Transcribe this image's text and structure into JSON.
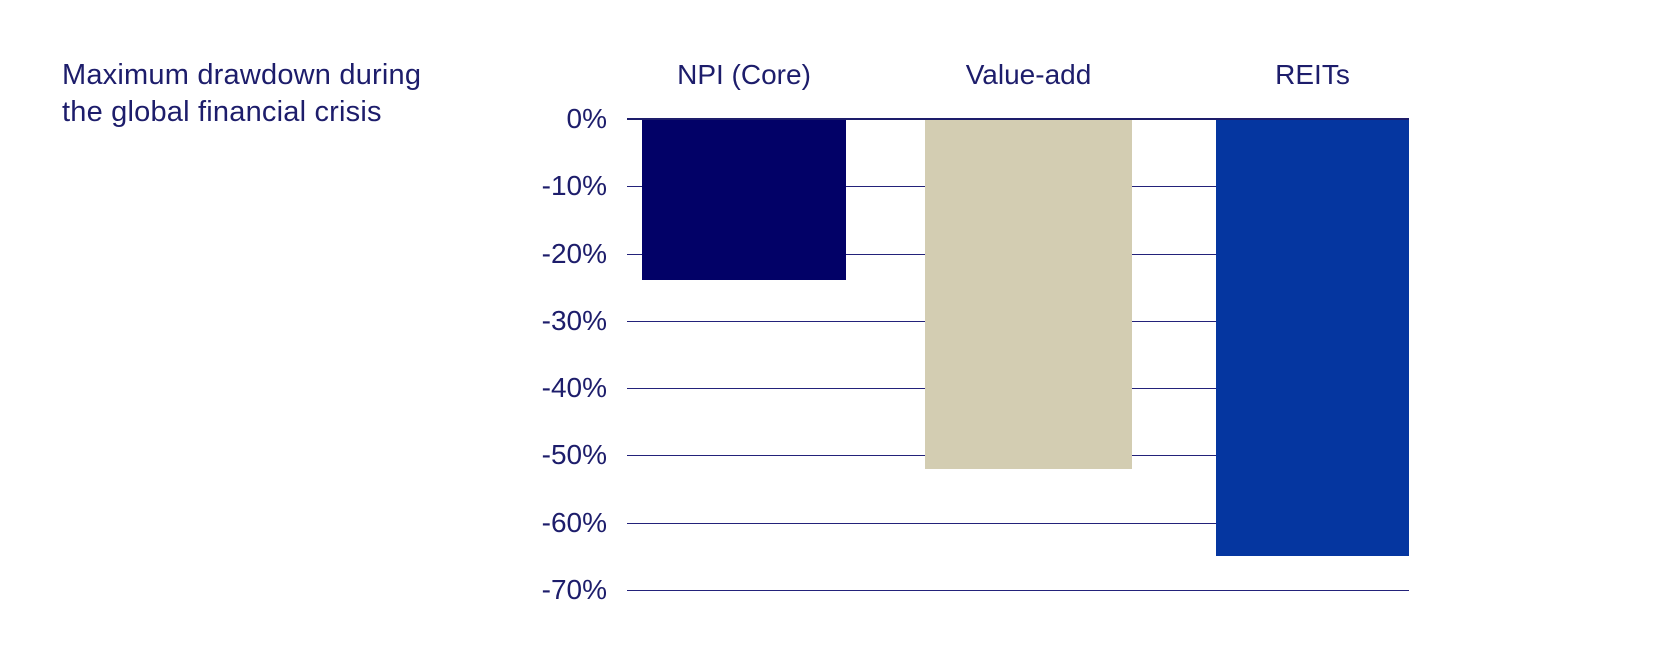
{
  "header": {
    "title_lines": [
      "Maximum drawdown during",
      "the global financial crisis"
    ]
  },
  "chart_data": {
    "type": "bar",
    "title": "Maximum drawdown during the global financial crisis",
    "categories": [
      "NPI (Core)",
      "Value-add",
      "REITs"
    ],
    "values": [
      -24,
      -52,
      -65
    ],
    "unit": "%",
    "bar_colors": [
      "#020167",
      "#d3cdb2",
      "#0536a0"
    ],
    "ylim": [
      -70,
      0
    ],
    "ytick_interval": 10,
    "ytick_labels": [
      "0%",
      "-10%",
      "-20%",
      "-30%",
      "-40%",
      "-50%",
      "-60%",
      "-70%"
    ],
    "grid": true,
    "legend": "none",
    "xlabel": "",
    "ylabel": "",
    "colors": {
      "text": "#1d1d6b",
      "gridline": "#23227a",
      "axis_line": "#1d1d6b",
      "background": "#ffffff"
    }
  }
}
